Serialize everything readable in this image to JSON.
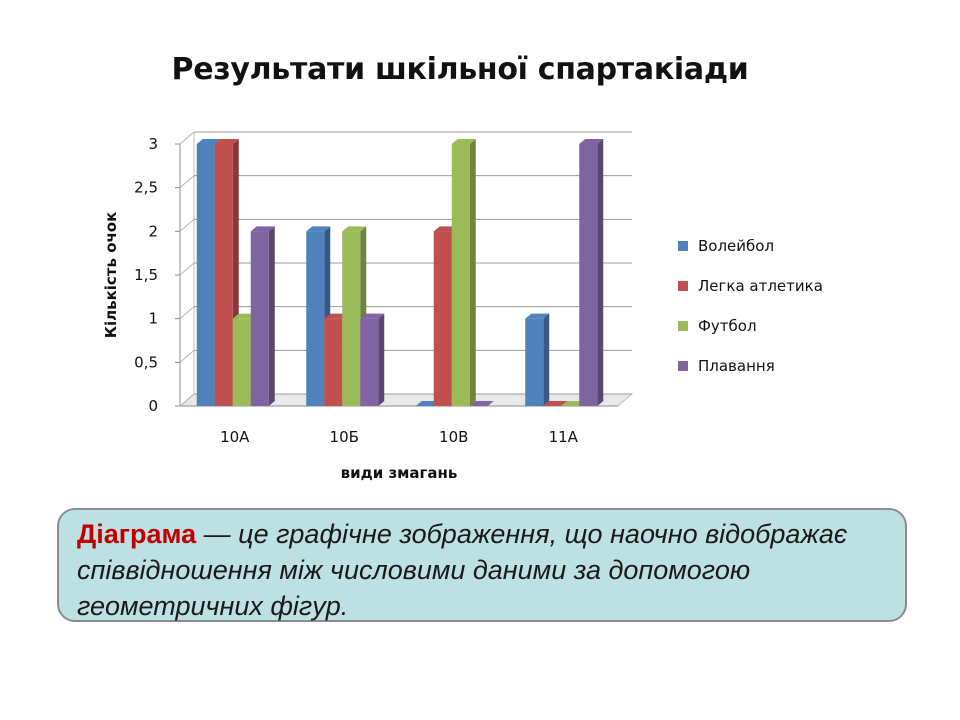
{
  "chart_data": {
    "type": "bar",
    "title": "Результати шкільної спартакіади",
    "categories": [
      "10А",
      "10Б",
      "10В",
      "11А"
    ],
    "series": [
      {
        "name": "Волейбол",
        "color": "#4f81bd",
        "values": [
          3,
          2,
          0,
          1
        ]
      },
      {
        "name": "Легка атлетика",
        "color": "#c0504d",
        "values": [
          3,
          1,
          2,
          0
        ]
      },
      {
        "name": "Футбол",
        "color": "#9bbb59",
        "values": [
          1,
          2,
          3,
          0
        ]
      },
      {
        "name": "Плавання",
        "color": "#8064a2",
        "values": [
          2,
          1,
          0,
          3
        ]
      }
    ],
    "xlabel": "види змагань",
    "ylabel": "Кількість очок",
    "ylim": [
      0,
      3
    ],
    "yticks": [
      "0",
      "0,5",
      "1",
      "1,5",
      "2",
      "2,5",
      "3"
    ],
    "grid": true,
    "legend_position": "right"
  },
  "definition": {
    "term": "Діаграма",
    "text": " — це графічне зображення, що наочно відображає  співвідношення між числовими даними за допомогою геометричних фігур."
  }
}
